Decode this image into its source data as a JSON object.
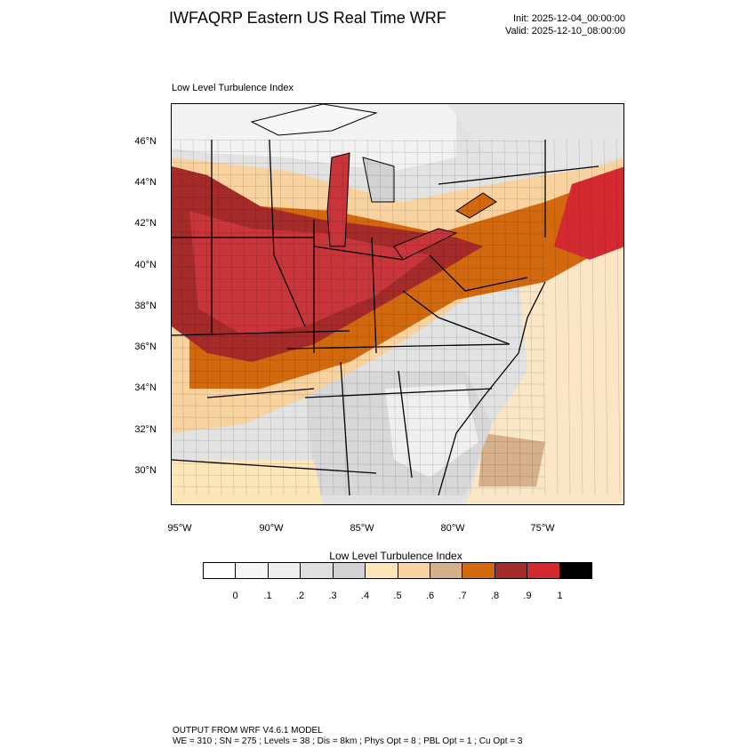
{
  "header": {
    "title": "IWFAQRP Eastern US Real Time WRF",
    "init": "Init: 2025-12-04_00:00:00",
    "valid": "Valid: 2025-12-10_08:00:00"
  },
  "map": {
    "subtitle": "Low Level Turbulence Index",
    "lat_labels": [
      "46°N",
      "44°N",
      "42°N",
      "40°N",
      "38°N",
      "36°N",
      "34°N",
      "32°N",
      "30°N"
    ],
    "lon_labels": [
      "95°W",
      "90°W",
      "85°W",
      "80°W",
      "75°W"
    ]
  },
  "colorbar": {
    "title": "Low Level Turbulence Index",
    "labels": [
      "0",
      ".1",
      ".2",
      ".3",
      ".4",
      ".5",
      ".6",
      ".7",
      ".8",
      ".9",
      "1"
    ],
    "colors": [
      "#ffffff",
      "#f7f7f7",
      "#eeeeee",
      "#e0e0e0",
      "#d2d2d2",
      "#fde6b8",
      "#f8d3a0",
      "#d6b08a",
      "#d2690e",
      "#a52a2a",
      "#d22a30",
      "#000000"
    ]
  },
  "footer": {
    "line1": "OUTPUT FROM WRF V4.6.1 MODEL",
    "line2": "WE = 310 ; SN = 275 ; Levels = 38 ; Dis = 8km ; Phys Opt = 8 ; PBL Opt = 1 ; Cu Opt = 3"
  }
}
